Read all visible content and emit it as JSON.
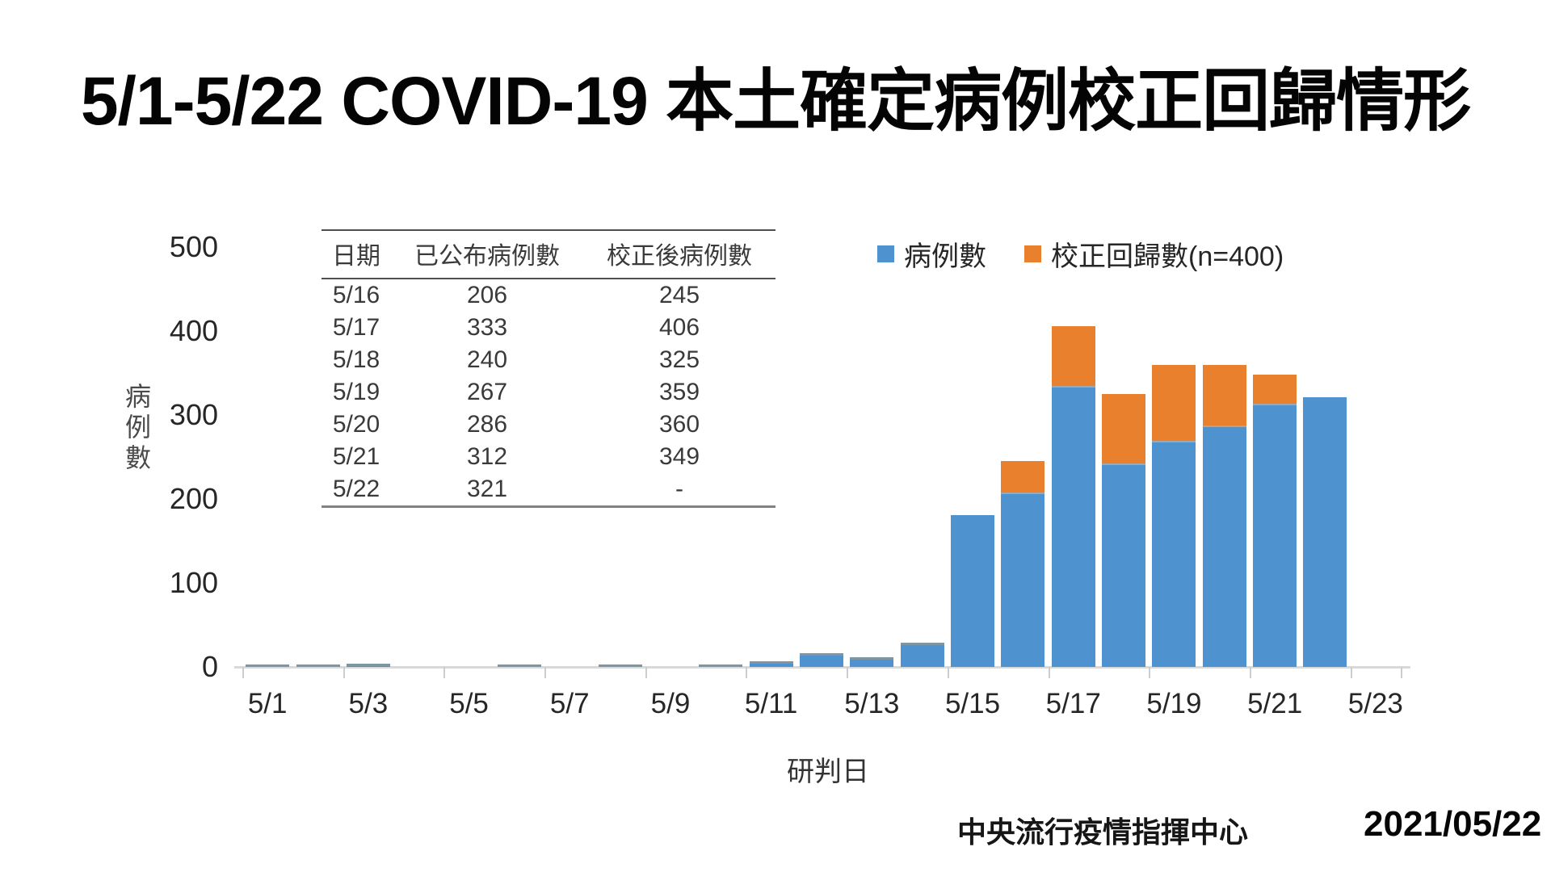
{
  "title": "5/1-5/22 COVID-19 本土確定病例校正回歸情形",
  "legend": [
    {
      "label": "病例數",
      "color": "#4e93cf"
    },
    {
      "label": "校正回歸數(n=400)",
      "color": "#e8802e"
    }
  ],
  "table": {
    "headers": [
      "日期",
      "已公布病例數",
      "校正後病例數"
    ],
    "rows": [
      [
        "5/16",
        "206",
        "245"
      ],
      [
        "5/17",
        "333",
        "406"
      ],
      [
        "5/18",
        "240",
        "325"
      ],
      [
        "5/19",
        "267",
        "359"
      ],
      [
        "5/20",
        "286",
        "360"
      ],
      [
        "5/21",
        "312",
        "349"
      ],
      [
        "5/22",
        "321",
        "-"
      ]
    ]
  },
  "footer": {
    "org": "中央流行疫情指揮中心",
    "date": "2021/05/22"
  },
  "chart_data": {
    "type": "bar",
    "stacked": true,
    "title": "",
    "xlabel": "研判日",
    "ylabel": "病例數",
    "ylim": [
      0,
      500
    ],
    "yticks": [
      0,
      100,
      200,
      300,
      400,
      500
    ],
    "grid": false,
    "legend_position": "top-right",
    "categories": [
      "5/1",
      "5/2",
      "5/3",
      "5/4",
      "5/5",
      "5/6",
      "5/7",
      "5/8",
      "5/9",
      "5/10",
      "5/11",
      "5/12",
      "5/13",
      "5/14",
      "5/15",
      "5/16",
      "5/17",
      "5/18",
      "5/19",
      "5/20",
      "5/21",
      "5/22",
      "5/23"
    ],
    "xtick_labels": [
      "5/1",
      "5/3",
      "5/5",
      "5/7",
      "5/9",
      "5/11",
      "5/13",
      "5/15",
      "5/17",
      "5/19",
      "5/21",
      "5/23"
    ],
    "series": [
      {
        "name": "病例數",
        "color": "#4e93cf",
        "values": [
          3,
          3,
          4,
          0,
          0,
          3,
          0,
          3,
          0,
          3,
          7,
          16,
          12,
          29,
          181,
          206,
          333,
          240,
          267,
          286,
          312,
          321,
          0
        ]
      },
      {
        "name": "校正回歸數(n=400)",
        "color": "#e8802e",
        "values": [
          0,
          0,
          0,
          0,
          0,
          0,
          0,
          0,
          0,
          0,
          0,
          0,
          0,
          0,
          0,
          39,
          73,
          85,
          92,
          74,
          37,
          0,
          0
        ]
      }
    ]
  }
}
